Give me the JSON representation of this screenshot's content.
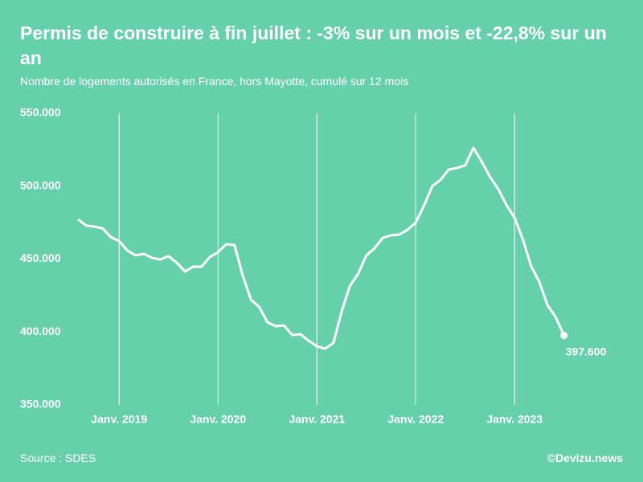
{
  "chart_data": {
    "type": "line",
    "title": "Permis de construire à fin juillet : -3% sur un mois et -22,8% sur un an",
    "subtitle": "Nombre de logements autorisés en France, hors Mayotte, cumulé sur 12 mois",
    "source": "Source : SDES",
    "credit": "©Devizu.news",
    "categories": [
      null,
      null,
      null,
      null,
      null,
      "Janv. 2019",
      null,
      null,
      null,
      null,
      null,
      null,
      null,
      null,
      null,
      null,
      null,
      "Janv. 2020",
      null,
      null,
      null,
      null,
      null,
      null,
      null,
      null,
      null,
      null,
      null,
      "Janv. 2021",
      null,
      null,
      null,
      null,
      null,
      null,
      null,
      null,
      null,
      null,
      null,
      "Janv. 2022",
      null,
      null,
      null,
      null,
      null,
      null,
      null,
      null,
      null,
      null,
      null,
      "Janv. 2023",
      null,
      null,
      null,
      null,
      null,
      null
    ],
    "series": [
      {
        "color": "#ffffff",
        "values": [
          477300,
          473000,
          472300,
          471000,
          465000,
          462400,
          455800,
          452500,
          453600,
          450800,
          449700,
          452000,
          447500,
          441500,
          444800,
          444800,
          451400,
          454700,
          460200,
          459600,
          438700,
          422200,
          417200,
          406700,
          404000,
          404500,
          397900,
          398500,
          394000,
          390200,
          388600,
          392400,
          413900,
          431500,
          439800,
          452500,
          457400,
          464600,
          466300,
          466800,
          470100,
          475100,
          486600,
          499900,
          504300,
          511400,
          512500,
          514200,
          526300,
          516900,
          506500,
          498200,
          487200,
          478400,
          463500,
          445300,
          434300,
          418300,
          410000,
          397600
        ],
        "value_labels": [
          null,
          null,
          null,
          null,
          null,
          null,
          null,
          null,
          null,
          null,
          null,
          null,
          null,
          null,
          null,
          null,
          null,
          null,
          null,
          null,
          null,
          null,
          null,
          null,
          null,
          null,
          null,
          null,
          null,
          null,
          null,
          null,
          null,
          null,
          null,
          null,
          null,
          null,
          null,
          null,
          null,
          null,
          null,
          null,
          null,
          null,
          null,
          null,
          null,
          null,
          null,
          null,
          null,
          null,
          null,
          null,
          null,
          null,
          null,
          "397.600"
        ]
      }
    ],
    "ylim": [
      350000,
      550000
    ],
    "yticks": [
      {
        "value": 350000,
        "label": "350.000"
      },
      {
        "value": 400000,
        "label": "400.000"
      },
      {
        "value": 450000,
        "label": "450.000"
      },
      {
        "value": 500000,
        "label": "500.000"
      },
      {
        "value": 550000,
        "label": "550.000"
      }
    ],
    "grid": true
  }
}
